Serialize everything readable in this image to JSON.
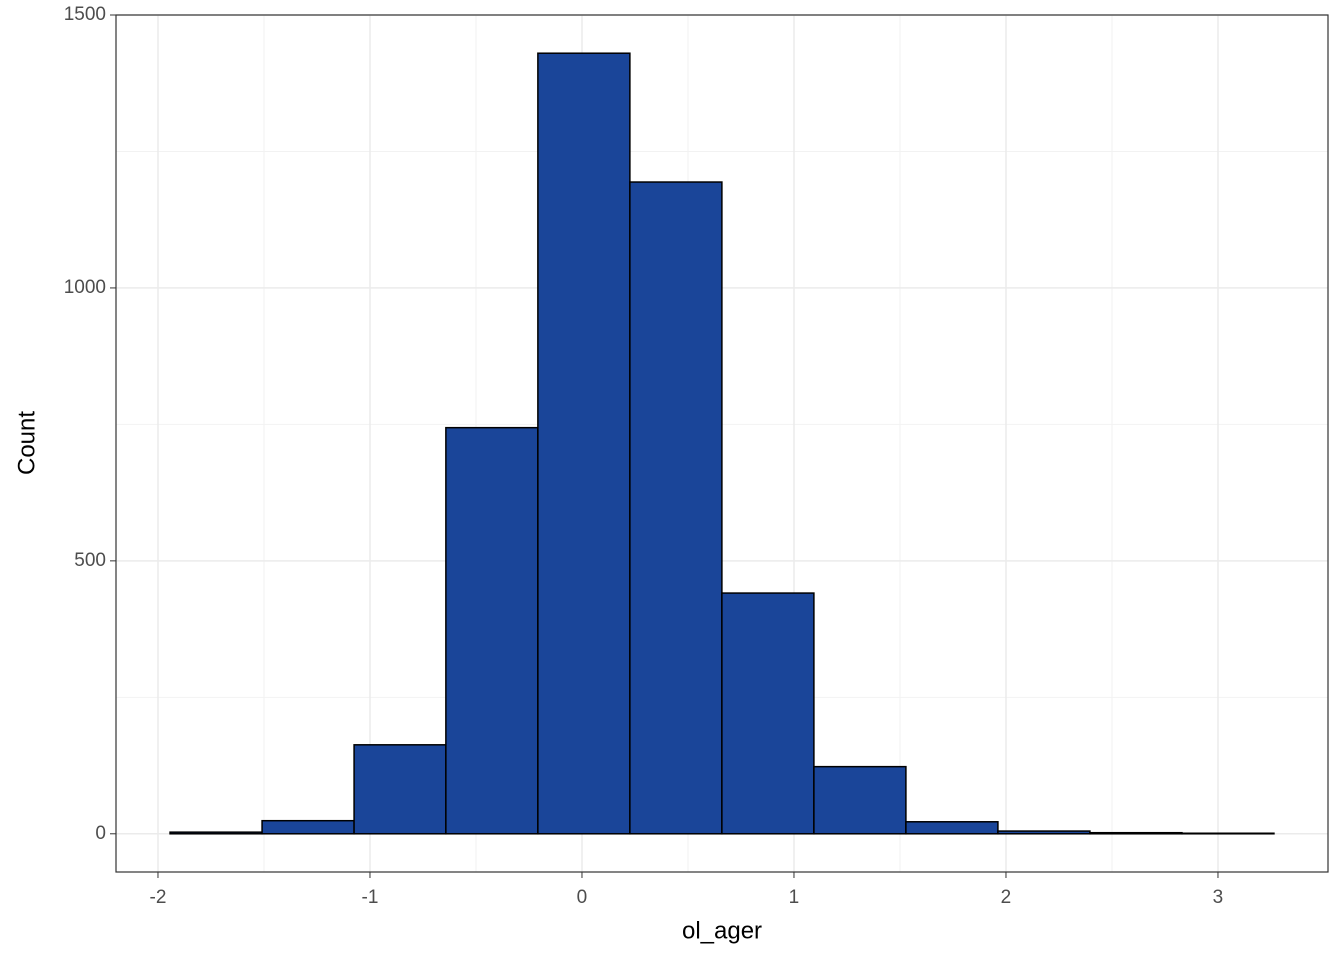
{
  "chart_data": {
    "type": "histogram",
    "x_label": "ol_ager",
    "y_label": "Count",
    "bins": [
      -1.943,
      -1.509,
      -1.075,
      -0.642,
      -0.208,
      0.226,
      0.66,
      1.094,
      1.528,
      1.962,
      2.396,
      2.83,
      3.264
    ],
    "values": [
      3,
      24,
      163,
      744,
      1430,
      1194,
      441,
      123,
      22,
      5,
      2,
      1
    ],
    "color": "#1a4599",
    "edge_color": "#000000",
    "xlim": [
      -2.198,
      3.519
    ],
    "xticks": [
      -2,
      -1,
      0,
      1,
      2,
      3
    ],
    "ylim": [
      -70,
      1500
    ],
    "yticks": [
      0,
      500,
      1000,
      1500
    ],
    "grid": true
  }
}
